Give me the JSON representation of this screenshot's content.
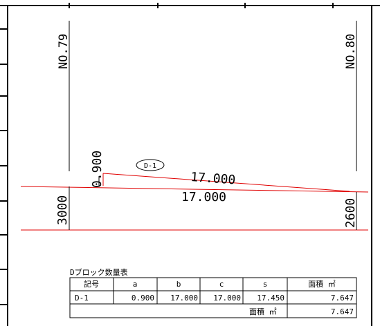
{
  "stations": {
    "left": "NO.79",
    "right": "NO.80"
  },
  "drawing": {
    "left_height": "3000",
    "right_height": "2600",
    "top_length": "17.000",
    "bottom_length": "17.000",
    "rise": "0.900",
    "block_tag": "D-1",
    "line_color": "#e00000",
    "ink_color": "#000000"
  },
  "quantity_table": {
    "title": "Dブロック数量表",
    "headers": [
      "記号",
      "a",
      "b",
      "c",
      "s",
      "面積 ㎡"
    ],
    "rows": [
      [
        "D-1",
        "0.900",
        "17.000",
        "17.000",
        "17.450",
        "7.647"
      ]
    ],
    "total_label": "面積 ㎡",
    "total_value": "7.647"
  }
}
